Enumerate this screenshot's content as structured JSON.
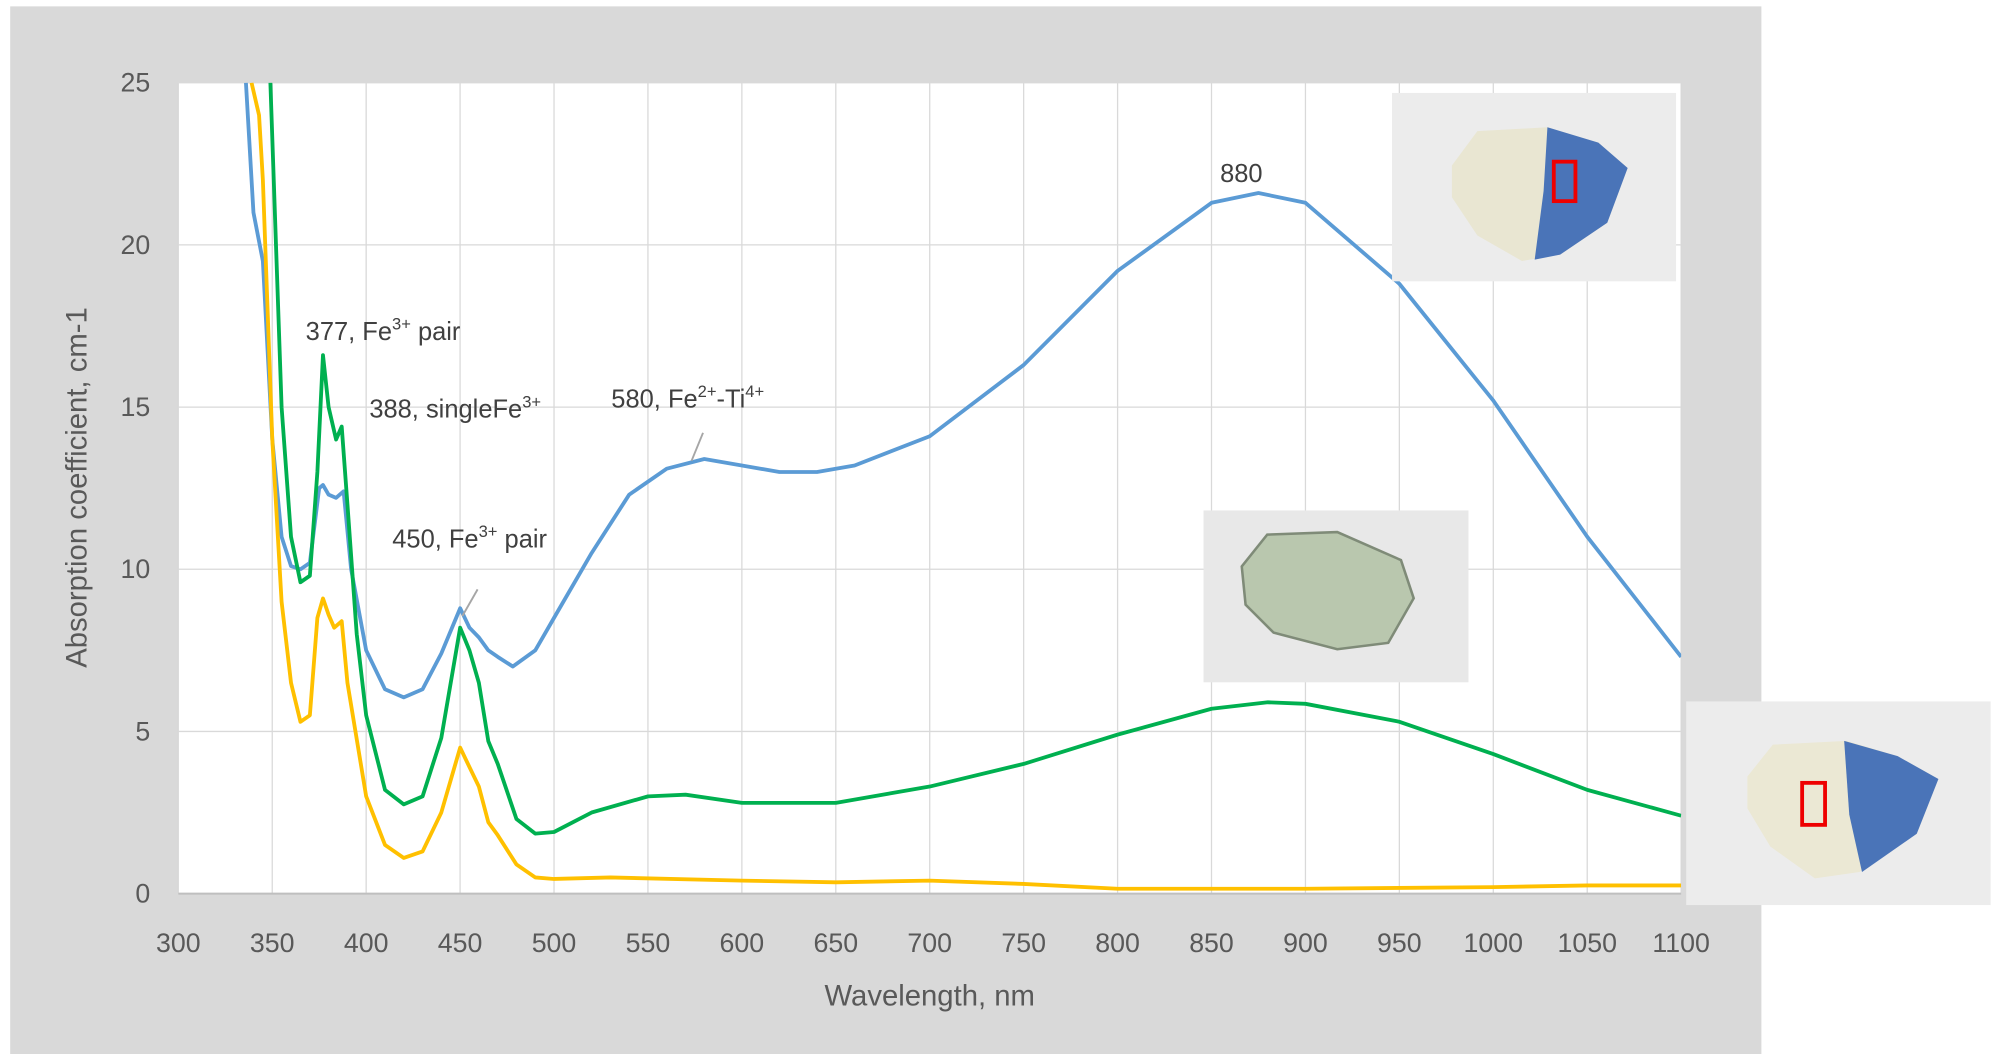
{
  "chart_data": {
    "type": "line",
    "x_label": "Wavelength, nm",
    "y_label": "Absorption coefficient, cm-1",
    "xlim": [
      300,
      1100
    ],
    "ylim": [
      0,
      25
    ],
    "xticks": [
      300,
      350,
      400,
      450,
      500,
      550,
      600,
      650,
      700,
      750,
      800,
      850,
      900,
      950,
      1000,
      1050,
      1100
    ],
    "yticks": [
      0,
      5,
      10,
      15,
      20,
      25
    ],
    "grid": true,
    "series": [
      {
        "color": "#5b9bd5",
        "x": [
          336,
          340,
          345,
          350,
          355,
          360,
          365,
          370,
          375,
          377,
          380,
          384,
          388,
          392,
          400,
          410,
          420,
          430,
          440,
          450,
          455,
          460,
          465,
          470,
          478,
          490,
          500,
          520,
          540,
          560,
          580,
          600,
          620,
          640,
          660,
          700,
          750,
          800,
          850,
          875,
          900,
          950,
          1000,
          1050,
          1100
        ],
        "values": [
          25,
          21,
          19.5,
          14,
          11,
          10.1,
          10,
          10.2,
          12.5,
          12.6,
          12.3,
          12.2,
          12.4,
          10,
          7.5,
          6.3,
          6.05,
          6.3,
          7.4,
          8.8,
          8.2,
          7.9,
          7.5,
          7.3,
          7.0,
          7.5,
          8.5,
          10.5,
          12.3,
          13.1,
          13.4,
          13.2,
          13.0,
          13.0,
          13.2,
          14.1,
          16.3,
          19.2,
          21.3,
          21.6,
          21.3,
          18.8,
          15.2,
          11.0,
          7.3
        ]
      },
      {
        "color": "#00b050",
        "x": [
          349,
          352,
          355,
          360,
          365,
          370,
          374,
          377,
          380,
          384,
          387,
          390,
          395,
          400,
          410,
          420,
          430,
          440,
          450,
          455,
          460,
          465,
          470,
          480,
          490,
          500,
          520,
          550,
          570,
          600,
          650,
          700,
          750,
          800,
          850,
          880,
          900,
          950,
          1000,
          1050,
          1100
        ],
        "values": [
          25,
          20,
          15,
          11,
          9.6,
          9.8,
          13,
          16.6,
          15,
          14,
          14.4,
          12,
          8,
          5.5,
          3.2,
          2.75,
          3.0,
          4.8,
          8.2,
          7.5,
          6.5,
          4.7,
          4.0,
          2.3,
          1.85,
          1.9,
          2.5,
          3.0,
          3.05,
          2.8,
          2.8,
          3.3,
          4.0,
          4.9,
          5.7,
          5.9,
          5.85,
          5.3,
          4.3,
          3.2,
          2.4
        ]
      },
      {
        "color": "#ffc000",
        "x": [
          339,
          343,
          345,
          350,
          355,
          360,
          365,
          370,
          374,
          377,
          380,
          383,
          387,
          390,
          400,
          410,
          420,
          430,
          440,
          450,
          455,
          460,
          465,
          470,
          480,
          490,
          500,
          530,
          600,
          650,
          700,
          750,
          800,
          900,
          1000,
          1050,
          1100
        ],
        "values": [
          25,
          24,
          22,
          14,
          9,
          6.5,
          5.3,
          5.5,
          8.5,
          9.1,
          8.6,
          8.2,
          8.4,
          6.5,
          3.0,
          1.5,
          1.1,
          1.3,
          2.5,
          4.5,
          3.9,
          3.3,
          2.2,
          1.8,
          0.9,
          0.5,
          0.45,
          0.5,
          0.4,
          0.35,
          0.4,
          0.3,
          0.15,
          0.15,
          0.2,
          0.25,
          0.25
        ]
      }
    ],
    "annotations": [
      {
        "parts": [
          {
            "text": "377, Fe"
          },
          {
            "sup": "3+"
          },
          {
            "text": " pair"
          }
        ]
      },
      {
        "parts": [
          {
            "text": "388, singleFe"
          },
          {
            "sup": "3+"
          }
        ]
      },
      {
        "parts": [
          {
            "text": "450, Fe"
          },
          {
            "sup": "3+"
          },
          {
            "text": " pair"
          }
        ]
      },
      {
        "parts": [
          {
            "text": "580, Fe"
          },
          {
            "sup": "2+"
          },
          {
            "text": "-Ti"
          },
          {
            "sup": "4+"
          }
        ]
      },
      {
        "parts": [
          {
            "text": "880"
          }
        ]
      }
    ]
  }
}
